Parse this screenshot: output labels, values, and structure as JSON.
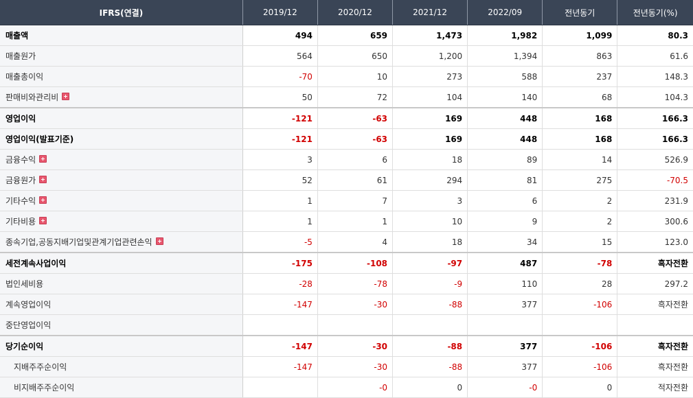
{
  "header": [
    "IFRS(연결)",
    "2019/12",
    "2020/12",
    "2021/12",
    "2022/09",
    "전년동기",
    "전년동기(%)"
  ],
  "rows": [
    {
      "label": "매출액",
      "bold": true,
      "expand": false,
      "sub": false,
      "values": [
        "494",
        "659",
        "1,473",
        "1,982",
        "1,099",
        "80.3"
      ]
    },
    {
      "label": "매출원가",
      "bold": false,
      "expand": false,
      "sub": false,
      "values": [
        "564",
        "650",
        "1,200",
        "1,394",
        "863",
        "61.6"
      ]
    },
    {
      "label": "매출총이익",
      "bold": false,
      "expand": false,
      "sub": false,
      "values": [
        "-70",
        "10",
        "273",
        "588",
        "237",
        "148.3"
      ]
    },
    {
      "label": "판매비와관리비",
      "bold": false,
      "expand": true,
      "sub": false,
      "values": [
        "50",
        "72",
        "104",
        "140",
        "68",
        "104.3"
      ]
    },
    {
      "label": "영업이익",
      "bold": true,
      "heavy": true,
      "expand": false,
      "sub": false,
      "values": [
        "-121",
        "-63",
        "169",
        "448",
        "168",
        "166.3"
      ]
    },
    {
      "label": "영업이익(발표기준)",
      "bold": true,
      "expand": false,
      "sub": false,
      "values": [
        "-121",
        "-63",
        "169",
        "448",
        "168",
        "166.3"
      ]
    },
    {
      "label": "금융수익",
      "bold": false,
      "expand": true,
      "sub": false,
      "values": [
        "3",
        "6",
        "18",
        "89",
        "14",
        "526.9"
      ]
    },
    {
      "label": "금융원가",
      "bold": false,
      "expand": true,
      "sub": false,
      "values": [
        "52",
        "61",
        "294",
        "81",
        "275",
        "-70.5"
      ]
    },
    {
      "label": "기타수익",
      "bold": false,
      "expand": true,
      "sub": false,
      "values": [
        "1",
        "7",
        "3",
        "6",
        "2",
        "231.9"
      ]
    },
    {
      "label": "기타비용",
      "bold": false,
      "expand": true,
      "sub": false,
      "values": [
        "1",
        "1",
        "10",
        "9",
        "2",
        "300.6"
      ]
    },
    {
      "label": "종속기업,공동지배기업및관계기업관련손익",
      "bold": false,
      "expand": true,
      "sub": false,
      "values": [
        "-5",
        "4",
        "18",
        "34",
        "15",
        "123.0"
      ]
    },
    {
      "label": "세전계속사업이익",
      "bold": true,
      "heavy": true,
      "expand": false,
      "sub": false,
      "values": [
        "-175",
        "-108",
        "-97",
        "487",
        "-78",
        "흑자전환"
      ]
    },
    {
      "label": "법인세비용",
      "bold": false,
      "expand": false,
      "sub": false,
      "values": [
        "-28",
        "-78",
        "-9",
        "110",
        "28",
        "297.2"
      ]
    },
    {
      "label": "계속영업이익",
      "bold": false,
      "expand": false,
      "sub": false,
      "values": [
        "-147",
        "-30",
        "-88",
        "377",
        "-106",
        "흑자전환"
      ]
    },
    {
      "label": "중단영업이익",
      "bold": false,
      "expand": false,
      "sub": false,
      "values": [
        "",
        "",
        "",
        "",
        "",
        ""
      ]
    },
    {
      "label": "당기순이익",
      "bold": true,
      "heavy": true,
      "expand": false,
      "sub": false,
      "values": [
        "-147",
        "-30",
        "-88",
        "377",
        "-106",
        "흑자전환"
      ]
    },
    {
      "label": "지배주주순이익",
      "bold": false,
      "expand": false,
      "sub": true,
      "values": [
        "-147",
        "-30",
        "-88",
        "377",
        "-106",
        "흑자전환"
      ]
    },
    {
      "label": "비지배주주순이익",
      "bold": false,
      "expand": false,
      "sub": true,
      "values": [
        "",
        "-0",
        "0",
        "-0",
        "0",
        "적자전환"
      ]
    }
  ],
  "colors": {
    "header_bg": "#3a4556",
    "negative": "#d10000",
    "label_bg": "#f5f6f8",
    "expand_icon": "#e7576e"
  },
  "icons": {
    "expand": "plus-box-icon"
  }
}
